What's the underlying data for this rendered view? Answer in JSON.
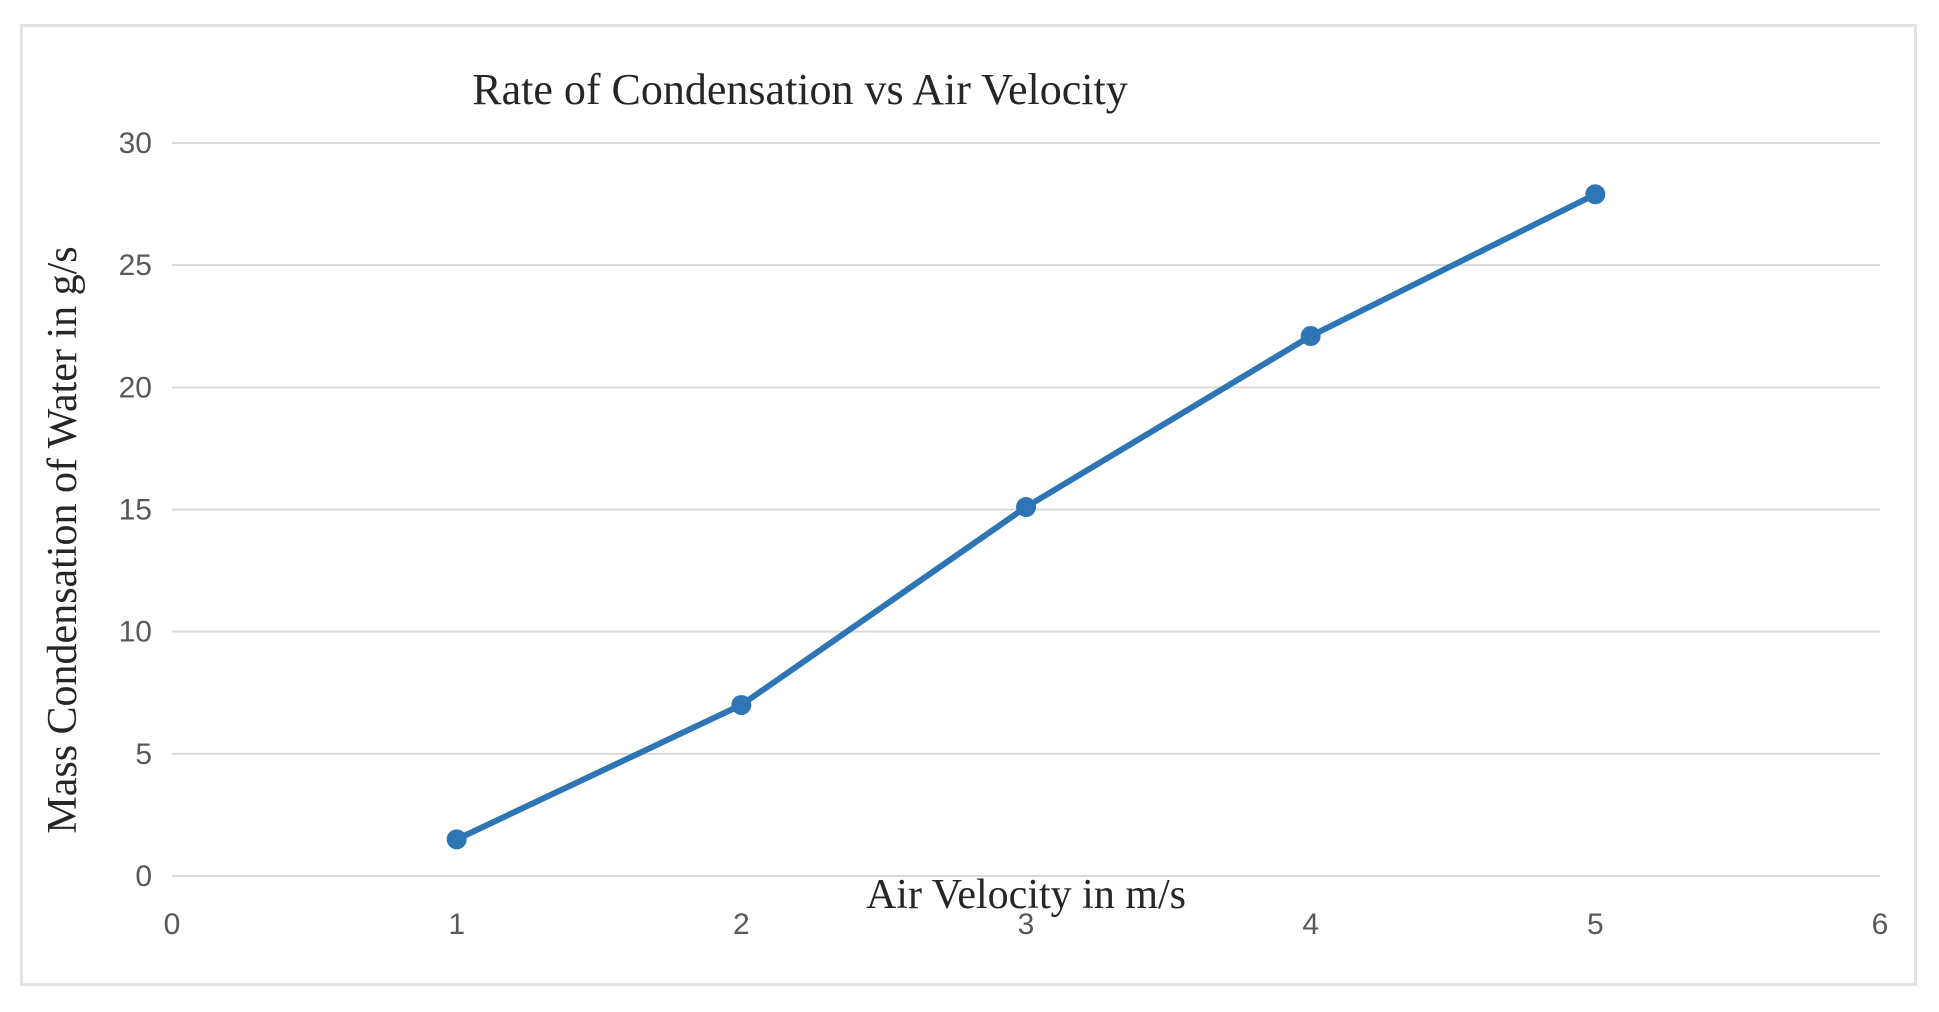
{
  "chart_data": {
    "type": "line",
    "title": "Rate of Condensation vs Air Velocity",
    "xlabel": "Air Velocity in m/s",
    "ylabel": "Mass Condensation of Water in g/s",
    "xlim": [
      0,
      6
    ],
    "ylim": [
      0,
      30
    ],
    "x_ticks": [
      0,
      1,
      2,
      3,
      4,
      5,
      6
    ],
    "y_ticks": [
      0,
      5,
      10,
      15,
      20,
      25,
      30
    ],
    "grid": true,
    "legend": "none",
    "series": [
      {
        "name": "Mass Condensation",
        "color": "#2e75b6",
        "x": [
          1,
          2,
          3,
          4,
          5
        ],
        "y": [
          1.5,
          7,
          15.1,
          22.1,
          27.9
        ]
      }
    ]
  }
}
